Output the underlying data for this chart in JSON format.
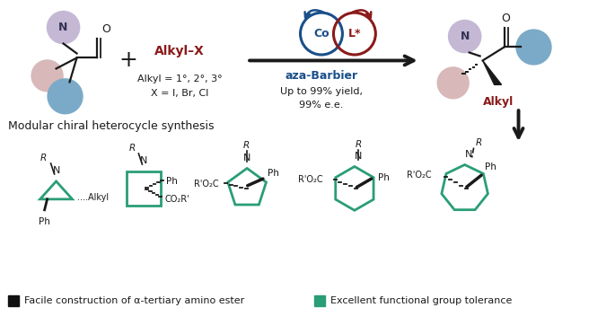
{
  "bg_color": "#ffffff",
  "teal_color": "#2a9d78",
  "dark_color": "#1a1a1a",
  "red_color": "#8b1a1a",
  "blue_color": "#1a4f8a",
  "lavender_color": "#c5b8d5",
  "light_blue_color": "#7aaac8",
  "light_pink_color": "#d8b8b8",
  "title_text": "Modular chiral heterocycle synthesis",
  "bullet1": "Facile construction of α-tertiary amino ester",
  "bullet2": "Excellent functional group tolerance",
  "alkyl_x_label": "Alkyl–X",
  "alkyl_degree": "Alkyl = 1°, 2°, 3°",
  "x_label": "X = I, Br, Cl",
  "aza_barbier": "aza-Barbier",
  "yield_text": "Up to 99% yield,",
  "ee_text": "99% e.e.",
  "co_label": "Co",
  "l_label": "L*",
  "alkyl_label_right": "Alkyl",
  "n_label": "N",
  "o_label": "O"
}
